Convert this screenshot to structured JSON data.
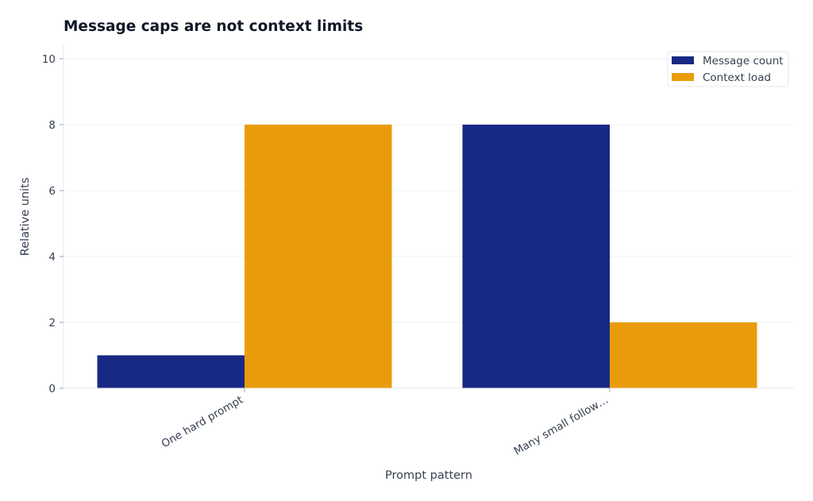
{
  "chart_data": {
    "type": "bar",
    "title": "Message caps are not context limits",
    "xlabel": "Prompt pattern",
    "ylabel": "Relative units",
    "categories": [
      "One hard prompt",
      "Many small follow…"
    ],
    "series": [
      {
        "name": "Message count",
        "color": "#172984",
        "values": [
          1,
          8
        ]
      },
      {
        "name": "Context load",
        "color": "#E99C0B",
        "values": [
          8,
          2
        ]
      }
    ],
    "ylim": [
      0,
      10
    ],
    "yticks": [
      0,
      2,
      4,
      6,
      8,
      10
    ],
    "grid": "horizontal",
    "legend_position": "top-right"
  }
}
